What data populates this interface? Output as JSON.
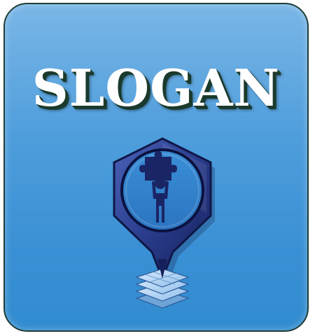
{
  "slogan": "SLOGAN",
  "colors": {
    "background_top": "#7ab6e6",
    "background_bottom": "#318ccf",
    "border": "#1f3d38",
    "text": "#ffffff",
    "text_shadow": "#1a3a2c",
    "emblem_dark": "#1c2a6e"
  },
  "icons": {
    "emblem": "map-pin-person-puzzle-icon",
    "base": "stacked-map-layers-icon"
  }
}
